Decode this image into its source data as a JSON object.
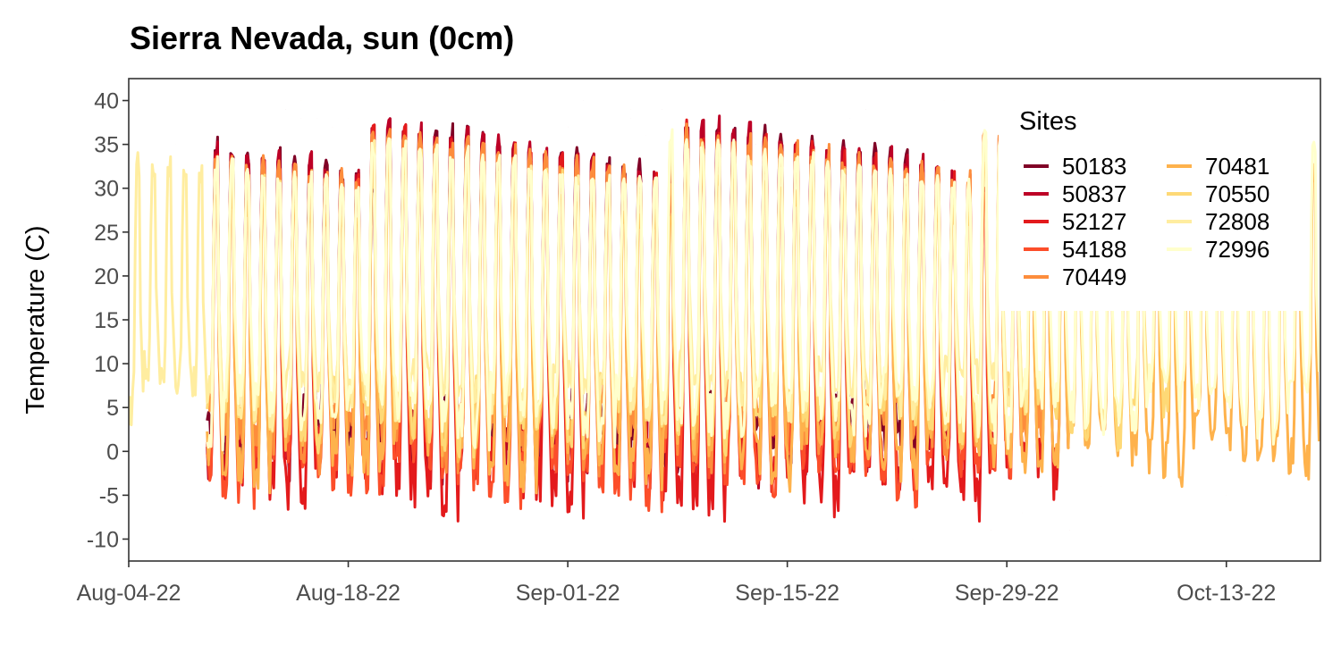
{
  "chart_data": {
    "type": "line",
    "title": "Sierra Nevada, sun (0cm)",
    "xlabel": "",
    "ylabel": "Temperature (C)",
    "ylim": [
      -12.5,
      42.5
    ],
    "y_ticks": [
      -10,
      -5,
      0,
      5,
      10,
      15,
      20,
      25,
      30,
      35,
      40
    ],
    "x_range": [
      "2022-08-04",
      "2022-10-19"
    ],
    "x_ticks": [
      {
        "date": "2022-08-04",
        "label": "Aug-04-22"
      },
      {
        "date": "2022-08-18",
        "label": "Aug-18-22"
      },
      {
        "date": "2022-09-01",
        "label": "Sep-01-22"
      },
      {
        "date": "2022-09-15",
        "label": "Sep-15-22"
      },
      {
        "date": "2022-09-29",
        "label": "Sep-29-22"
      },
      {
        "date": "2022-10-13",
        "label": "Oct-13-22"
      }
    ],
    "grid": false,
    "legend": {
      "title": "Sites",
      "position": "top-right"
    },
    "series": [
      {
        "name": "50183",
        "color": "#800026",
        "start": "2022-08-09",
        "end": "2022-09-24",
        "hi": 39,
        "lo": -1,
        "points": [
          {
            "x": "2022-08-09",
            "y": 1
          },
          {
            "x": "2022-08-14",
            "y": 39
          },
          {
            "x": "2022-08-20",
            "y": 36
          },
          {
            "x": "2022-08-27",
            "y": -2
          },
          {
            "x": "2022-09-02",
            "y": 40
          },
          {
            "x": "2022-09-07",
            "y": 39
          },
          {
            "x": "2022-09-13",
            "y": 35
          },
          {
            "x": "2022-09-19",
            "y": 38
          },
          {
            "x": "2022-09-24",
            "y": 0
          }
        ]
      },
      {
        "name": "50837",
        "color": "#bd0026",
        "start": "2022-08-09",
        "end": "2022-09-26",
        "hi": 39,
        "lo": -2,
        "points": [
          {
            "x": "2022-08-09",
            "y": 0
          },
          {
            "x": "2022-08-15",
            "y": 38
          },
          {
            "x": "2022-08-22",
            "y": 37
          },
          {
            "x": "2022-08-30",
            "y": -3
          },
          {
            "x": "2022-09-05",
            "y": 38
          },
          {
            "x": "2022-09-15",
            "y": 40
          },
          {
            "x": "2022-09-20",
            "y": 39
          },
          {
            "x": "2022-09-26",
            "y": -1
          }
        ]
      },
      {
        "name": "52127",
        "color": "#e31a1c",
        "start": "2022-08-09",
        "end": "2022-10-03",
        "hi": 38,
        "lo": -5,
        "points": [
          {
            "x": "2022-08-09",
            "y": -1
          },
          {
            "x": "2022-08-16",
            "y": 38
          },
          {
            "x": "2022-08-23",
            "y": -2
          },
          {
            "x": "2022-09-01",
            "y": 37
          },
          {
            "x": "2022-09-10",
            "y": -1
          },
          {
            "x": "2022-09-22",
            "y": -10
          },
          {
            "x": "2022-09-28",
            "y": -9
          },
          {
            "x": "2022-10-03",
            "y": -9
          }
        ]
      },
      {
        "name": "54188",
        "color": "#fc4e2a",
        "start": "2022-08-09",
        "end": "2022-09-30",
        "hi": 37,
        "lo": -4,
        "points": [
          {
            "x": "2022-08-09",
            "y": 4
          },
          {
            "x": "2022-08-17",
            "y": 37
          },
          {
            "x": "2022-08-28",
            "y": -2
          },
          {
            "x": "2022-09-06",
            "y": 36
          },
          {
            "x": "2022-09-16",
            "y": -8
          },
          {
            "x": "2022-09-23",
            "y": -10
          },
          {
            "x": "2022-09-30",
            "y": -7
          }
        ]
      },
      {
        "name": "70449",
        "color": "#fd8d3c",
        "start": "2022-08-09",
        "end": "2022-10-02",
        "hi": 38,
        "lo": 0,
        "points": [
          {
            "x": "2022-08-09",
            "y": 5
          },
          {
            "x": "2022-08-15",
            "y": 40
          },
          {
            "x": "2022-08-25",
            "y": 2
          },
          {
            "x": "2022-09-05",
            "y": 39
          },
          {
            "x": "2022-09-15",
            "y": -4
          },
          {
            "x": "2022-09-25",
            "y": 40
          },
          {
            "x": "2022-10-02",
            "y": -3
          }
        ]
      },
      {
        "name": "70481",
        "color": "#feb24c",
        "start": "2022-08-09",
        "end": "2022-10-19",
        "hi": 34,
        "lo": -2,
        "points": [
          {
            "x": "2022-08-09",
            "y": 7
          },
          {
            "x": "2022-08-20",
            "y": 36
          },
          {
            "x": "2022-09-05",
            "y": 5
          },
          {
            "x": "2022-09-20",
            "y": 35
          },
          {
            "x": "2022-10-05",
            "y": -4
          },
          {
            "x": "2022-10-13",
            "y": -5
          },
          {
            "x": "2022-10-19",
            "y": -4
          }
        ]
      },
      {
        "name": "70550",
        "color": "#fed976",
        "start": "2022-08-09",
        "end": "2022-10-10",
        "hi": 36,
        "lo": 2,
        "points": [
          {
            "x": "2022-08-09",
            "y": 8
          },
          {
            "x": "2022-08-18",
            "y": 38
          },
          {
            "x": "2022-08-30",
            "y": 4
          },
          {
            "x": "2022-09-10",
            "y": 37
          },
          {
            "x": "2022-09-22",
            "y": 0
          },
          {
            "x": "2022-10-02",
            "y": 20
          },
          {
            "x": "2022-10-10",
            "y": 2
          }
        ]
      },
      {
        "name": "72808",
        "color": "#ffeda0",
        "start": "2022-08-04",
        "end": "2022-10-01",
        "hi": 36,
        "lo": 5,
        "points": [
          {
            "x": "2022-08-04",
            "y": 11
          },
          {
            "x": "2022-08-05",
            "y": 32
          },
          {
            "x": "2022-08-07",
            "y": 35
          },
          {
            "x": "2022-08-08",
            "y": 31
          },
          {
            "x": "2022-08-15",
            "y": 39
          },
          {
            "x": "2022-08-30",
            "y": 6
          },
          {
            "x": "2022-09-14",
            "y": 28
          },
          {
            "x": "2022-09-22",
            "y": 2
          },
          {
            "x": "2022-10-01",
            "y": 10
          }
        ]
      },
      {
        "name": "72996",
        "color": "#ffffcc",
        "start": "2022-08-09",
        "end": "2022-10-19",
        "hi": 37,
        "lo": 3,
        "points": [
          {
            "x": "2022-08-09",
            "y": 9
          },
          {
            "x": "2022-08-19",
            "y": 38
          },
          {
            "x": "2022-09-01",
            "y": 5
          },
          {
            "x": "2022-09-13",
            "y": 34
          },
          {
            "x": "2022-09-20",
            "y": -1
          },
          {
            "x": "2022-10-10",
            "y": 15
          },
          {
            "x": "2022-10-19",
            "y": 3
          }
        ]
      }
    ]
  }
}
